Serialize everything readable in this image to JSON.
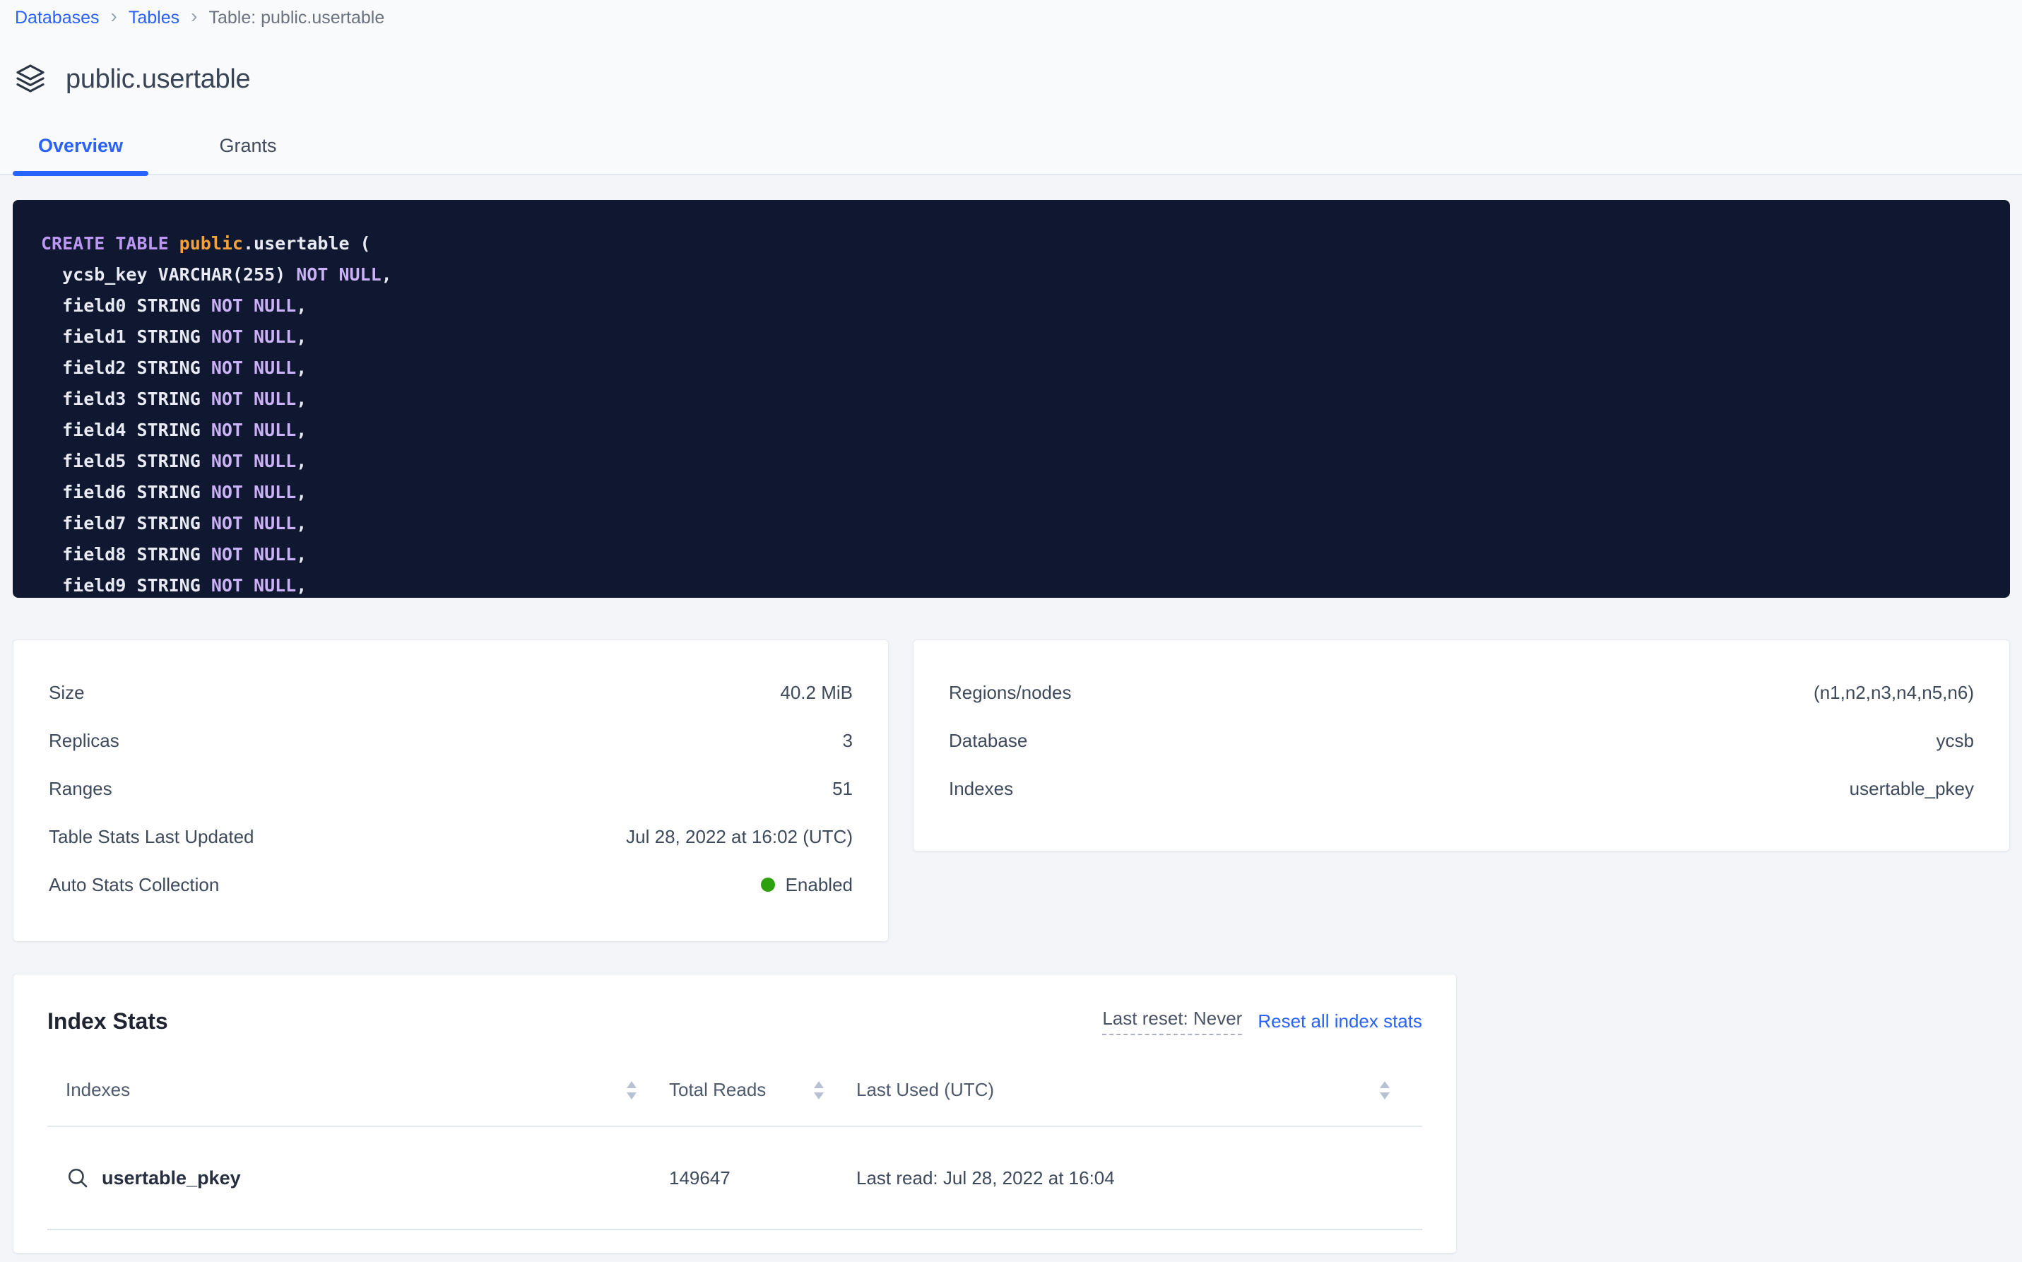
{
  "breadcrumb": {
    "separator": "›",
    "items": [
      {
        "label": "Databases"
      },
      {
        "label": "Tables"
      }
    ],
    "current": "Table: public.usertable"
  },
  "page": {
    "title": "public.usertable"
  },
  "tabs": [
    {
      "label": "Overview",
      "active": true
    },
    {
      "label": "Grants",
      "active": false
    }
  ],
  "sql": {
    "lines": [
      {
        "tokens": [
          {
            "t": "CREATE TABLE ",
            "c": "kw"
          },
          {
            "t": "public",
            "c": "orange"
          },
          {
            "t": ".usertable (",
            "c": "plain"
          }
        ]
      },
      {
        "tokens": [
          {
            "t": "  ycsb_key VARCHAR(255) ",
            "c": "plain"
          },
          {
            "t": "NOT NULL",
            "c": "kw2"
          },
          {
            "t": ",",
            "c": "plain"
          }
        ]
      },
      {
        "tokens": [
          {
            "t": "  field0 STRING ",
            "c": "plain"
          },
          {
            "t": "NOT NULL",
            "c": "kw2"
          },
          {
            "t": ",",
            "c": "plain"
          }
        ]
      },
      {
        "tokens": [
          {
            "t": "  field1 STRING ",
            "c": "plain"
          },
          {
            "t": "NOT NULL",
            "c": "kw2"
          },
          {
            "t": ",",
            "c": "plain"
          }
        ]
      },
      {
        "tokens": [
          {
            "t": "  field2 STRING ",
            "c": "plain"
          },
          {
            "t": "NOT NULL",
            "c": "kw2"
          },
          {
            "t": ",",
            "c": "plain"
          }
        ]
      },
      {
        "tokens": [
          {
            "t": "  field3 STRING ",
            "c": "plain"
          },
          {
            "t": "NOT NULL",
            "c": "kw2"
          },
          {
            "t": ",",
            "c": "plain"
          }
        ]
      },
      {
        "tokens": [
          {
            "t": "  field4 STRING ",
            "c": "plain"
          },
          {
            "t": "NOT NULL",
            "c": "kw2"
          },
          {
            "t": ",",
            "c": "plain"
          }
        ]
      },
      {
        "tokens": [
          {
            "t": "  field5 STRING ",
            "c": "plain"
          },
          {
            "t": "NOT NULL",
            "c": "kw2"
          },
          {
            "t": ",",
            "c": "plain"
          }
        ]
      },
      {
        "tokens": [
          {
            "t": "  field6 STRING ",
            "c": "plain"
          },
          {
            "t": "NOT NULL",
            "c": "kw2"
          },
          {
            "t": ",",
            "c": "plain"
          }
        ]
      },
      {
        "tokens": [
          {
            "t": "  field7 STRING ",
            "c": "plain"
          },
          {
            "t": "NOT NULL",
            "c": "kw2"
          },
          {
            "t": ",",
            "c": "plain"
          }
        ]
      },
      {
        "tokens": [
          {
            "t": "  field8 STRING ",
            "c": "plain"
          },
          {
            "t": "NOT NULL",
            "c": "kw2"
          },
          {
            "t": ",",
            "c": "plain"
          }
        ]
      },
      {
        "tokens": [
          {
            "t": "  field9 STRING ",
            "c": "plain"
          },
          {
            "t": "NOT NULL",
            "c": "kw2"
          },
          {
            "t": ",",
            "c": "plain"
          }
        ]
      }
    ]
  },
  "table_details_card": {
    "rows": [
      {
        "label": "Size",
        "value": "40.2 MiB"
      },
      {
        "label": "Replicas",
        "value": "3"
      },
      {
        "label": "Ranges",
        "value": "51"
      },
      {
        "label": "Table Stats Last Updated",
        "value": "Jul 28, 2022 at 16:02 (UTC)"
      },
      {
        "label": "Auto Stats Collection",
        "value": "Enabled",
        "dot": true
      }
    ]
  },
  "database_details_card": {
    "rows": [
      {
        "label": "Regions/nodes",
        "value": "(n1,n2,n3,n4,n5,n6)"
      },
      {
        "label": "Database",
        "value": "ycsb"
      },
      {
        "label": "Indexes",
        "value": "usertable_pkey"
      }
    ]
  },
  "index_stats": {
    "title": "Index Stats",
    "last_reset": "Last reset: Never",
    "reset_link": "Reset all index stats",
    "columns": [
      "Indexes",
      "Total Reads",
      "Last Used (UTC)"
    ],
    "rows": [
      {
        "index_name": "usertable_pkey",
        "total_reads": "149647",
        "last_used": "Last read: Jul 28, 2022 at 16:04"
      }
    ]
  },
  "colors": {
    "accent_blue": "#2962ff",
    "status_green": "#2da10d",
    "code_background": "#0f1830",
    "code_keyword": "#bd98f2",
    "code_keyword_light": "#cbb1f5",
    "code_schema_orange": "#f2a13c",
    "code_plain": "#e8ebf3"
  }
}
